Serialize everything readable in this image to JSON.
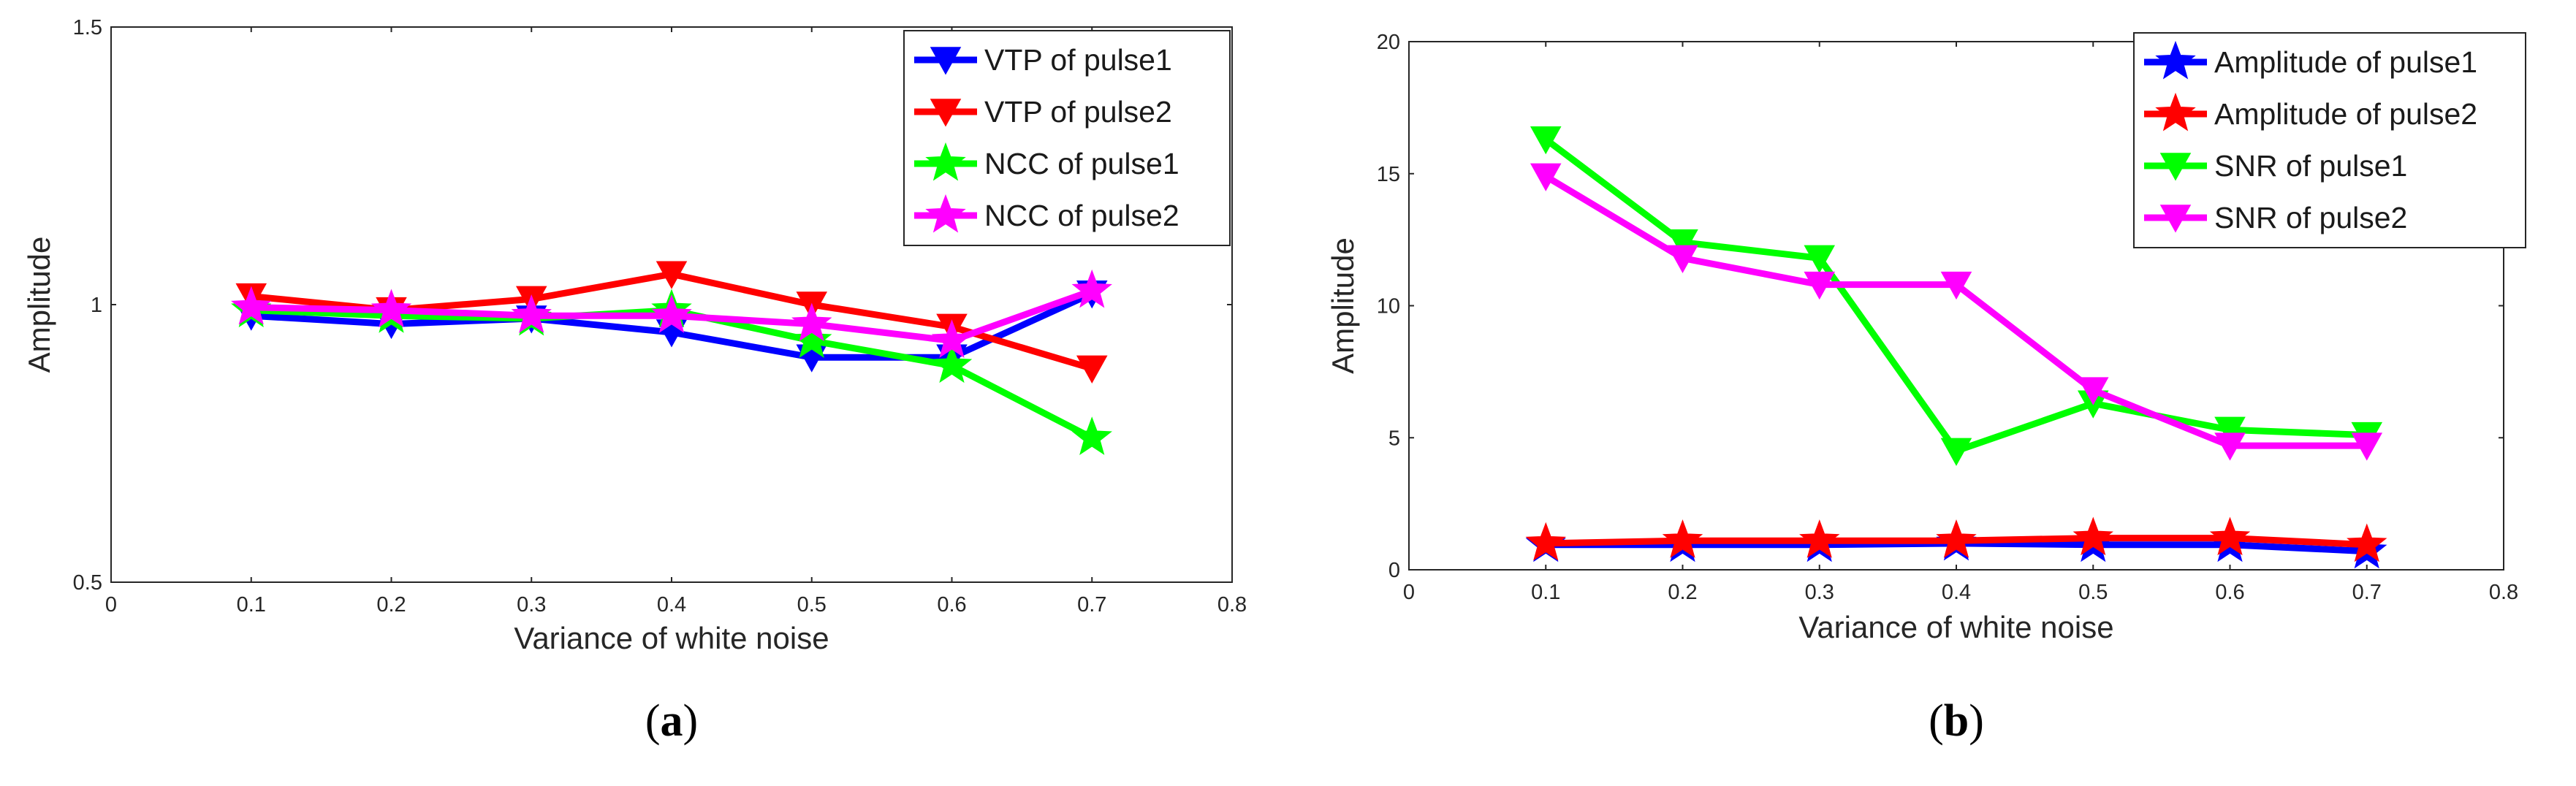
{
  "chart_data": [
    {
      "type": "line",
      "panel_label": {
        "open": "(",
        "letter": "a",
        "close": ")"
      },
      "title": "",
      "xlabel": "Variance of white noise",
      "ylabel": "Amplitude",
      "xlim": [
        0,
        0.8
      ],
      "ylim": [
        0.5,
        1.5
      ],
      "xticks": [
        0,
        0.1,
        0.2,
        0.3,
        0.4,
        0.5,
        0.6,
        0.7,
        0.8
      ],
      "xtick_labels": [
        "0",
        "0.1",
        "0.2",
        "0.3",
        "0.4",
        "0.5",
        "0.6",
        "0.7",
        "0.8"
      ],
      "yticks": [
        0.5,
        1,
        1.5
      ],
      "ytick_labels": [
        "0.5",
        "1",
        "1.5"
      ],
      "legend_position": "top-right",
      "x": [
        0.1,
        0.2,
        0.3,
        0.4,
        0.5,
        0.6,
        0.7
      ],
      "series": [
        {
          "name": "VTP of pulse1",
          "color": "#0000ff",
          "marker": "triangle-down",
          "values": [
            0.98,
            0.965,
            0.975,
            0.95,
            0.905,
            0.905,
            1.02
          ]
        },
        {
          "name": "VTP of pulse2",
          "color": "#ff0000",
          "marker": "triangle-down",
          "values": [
            1.015,
            0.99,
            1.01,
            1.055,
            1.0,
            0.96,
            0.885
          ]
        },
        {
          "name": "NCC of pulse1",
          "color": "#00ff00",
          "marker": "star",
          "values": [
            0.99,
            0.98,
            0.975,
            0.99,
            0.935,
            0.89,
            0.76
          ]
        },
        {
          "name": "NCC of pulse2",
          "color": "#ff00ff",
          "marker": "star",
          "values": [
            0.995,
            0.99,
            0.98,
            0.98,
            0.965,
            0.935,
            1.025
          ]
        }
      ]
    },
    {
      "type": "line",
      "panel_label": {
        "open": "(",
        "letter": "b",
        "close": ")"
      },
      "title": "",
      "xlabel": "Variance of white noise",
      "ylabel": "Amplitude",
      "xlim": [
        0,
        0.8
      ],
      "ylim": [
        0,
        20
      ],
      "xticks": [
        0,
        0.1,
        0.2,
        0.3,
        0.4,
        0.5,
        0.6,
        0.7,
        0.8
      ],
      "xtick_labels": [
        "0",
        "0.1",
        "0.2",
        "0.3",
        "0.4",
        "0.5",
        "0.6",
        "0.7",
        "0.8"
      ],
      "yticks": [
        0,
        5,
        10,
        15,
        20
      ],
      "ytick_labels": [
        "0",
        "5",
        "10",
        "15",
        "20"
      ],
      "legend_position": "top-right",
      "x": [
        0.1,
        0.2,
        0.3,
        0.4,
        0.5,
        0.6,
        0.7
      ],
      "series": [
        {
          "name": "Amplitude of pulse1",
          "color": "#0000ff",
          "marker": "star",
          "values": [
            0.95,
            0.95,
            0.95,
            1.0,
            0.95,
            0.95,
            0.7
          ]
        },
        {
          "name": "Amplitude of pulse2",
          "color": "#ff0000",
          "marker": "star",
          "values": [
            1.0,
            1.1,
            1.1,
            1.1,
            1.2,
            1.2,
            0.95
          ]
        },
        {
          "name": "SNR of pulse1",
          "color": "#00ff00",
          "marker": "triangle-down",
          "values": [
            16.3,
            12.4,
            11.8,
            4.5,
            6.3,
            5.3,
            5.1
          ]
        },
        {
          "name": "SNR of pulse2",
          "color": "#ff00ff",
          "marker": "triangle-down",
          "values": [
            14.9,
            11.8,
            10.8,
            10.8,
            6.8,
            4.7,
            4.7
          ]
        }
      ]
    }
  ]
}
